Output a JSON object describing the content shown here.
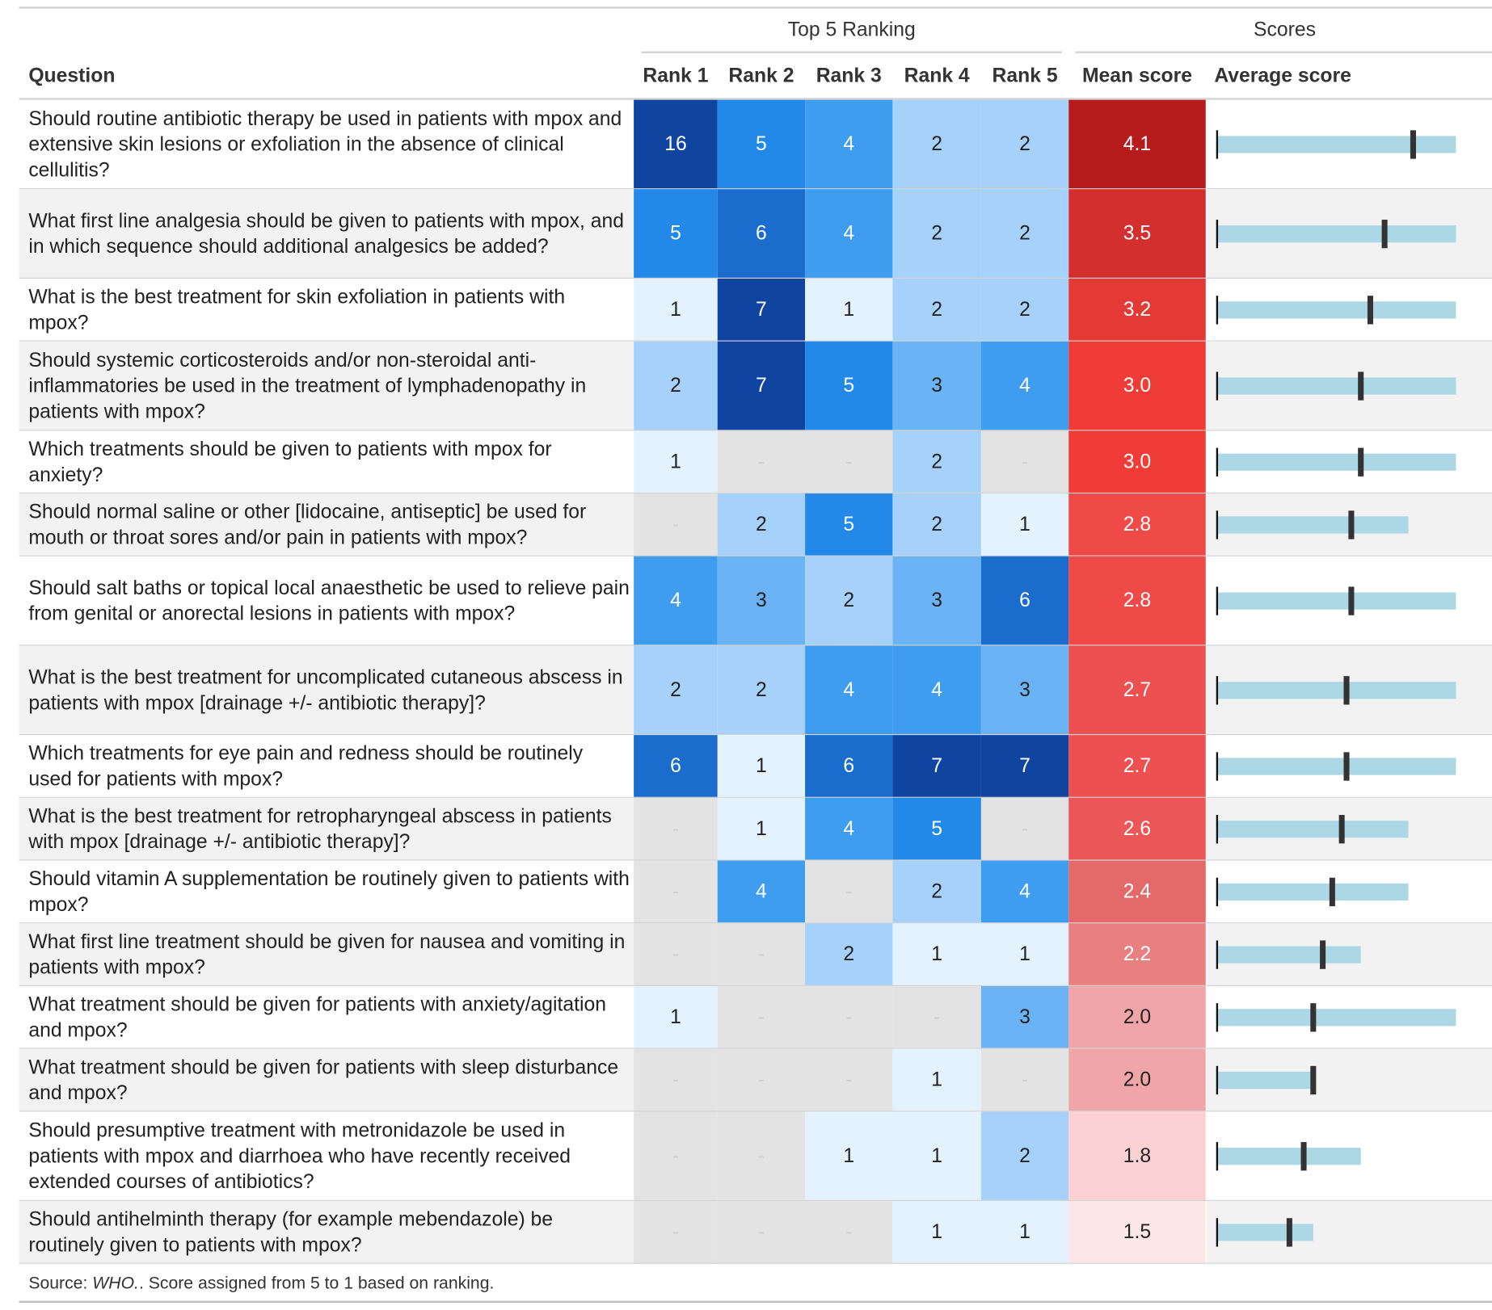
{
  "header": {
    "spanner_ranking": "Top 5 Ranking",
    "spanner_scores": "Scores",
    "col_question": "Question",
    "col_rank1": "Rank 1",
    "col_rank2": "Rank 2",
    "col_rank3": "Rank 3",
    "col_rank4": "Rank 4",
    "col_rank5": "Rank 5",
    "col_mean": "Mean score",
    "col_avg": "Average score"
  },
  "footnote": {
    "prefix": "Source: ",
    "source": "WHO.",
    "suffix": ". Score assigned from 5 to 1 based on ranking."
  },
  "empty_marker": "-",
  "colors": {
    "blue_scale": [
      "#e3f2fd",
      "#c5e1fb",
      "#a6d1fa",
      "#8cc7f9",
      "#6ab4f5",
      "#3f9df0",
      "#2389e8",
      "#1a6ccd",
      "#0f44a1"
    ],
    "empty_cell": "#e3e3e3",
    "bar_fill": "#acd8e6",
    "bar_marker": "#333333",
    "zebra": "#f2f2f2"
  },
  "chart_data": {
    "type": "table",
    "rows": [
      {
        "question": "Should routine antibiotic therapy be used in patients with mpox and extensive skin lesions or exfoliation in the absence of clinical cellulitis?",
        "ranks": [
          "16",
          "5",
          "4",
          "2",
          "2"
        ],
        "mean": "4.1",
        "bar_max": 5,
        "mean_value": 4.1,
        "mean_color": "#b71c1c"
      },
      {
        "question": "What first line analgesia should be given to patients with mpox, and in which sequence should additional analgesics be added?",
        "ranks": [
          "5",
          "6",
          "4",
          "2",
          "2"
        ],
        "mean": "3.5",
        "bar_max": 5,
        "mean_value": 3.5,
        "mean_color": "#d32f2f"
      },
      {
        "question": "What is the best treatment for skin exfoliation in patients with mpox?",
        "ranks": [
          "1",
          "7",
          "1",
          "2",
          "2"
        ],
        "mean": "3.2",
        "bar_max": 5,
        "mean_value": 3.2,
        "mean_color": "#e53935"
      },
      {
        "question": "Should systemic corticosteroids and/or non-steroidal anti-inflammatories be used in the treatment of lymphadenopathy in patients with mpox?",
        "ranks": [
          "2",
          "7",
          "5",
          "3",
          "4"
        ],
        "mean": "3.0",
        "bar_max": 5,
        "mean_value": 3.0,
        "mean_color": "#f03c36"
      },
      {
        "question": "Which treatments should be given to patients with mpox for anxiety?",
        "ranks": [
          "1",
          "-",
          "-",
          "2",
          "-"
        ],
        "mean": "3.0",
        "bar_max": 5,
        "mean_value": 3.0,
        "mean_color": "#f03c36"
      },
      {
        "question": "Should normal saline or other [lidocaine, antiseptic] be used for mouth or throat sores and/or pain in patients with mpox?",
        "ranks": [
          "-",
          "2",
          "5",
          "2",
          "1"
        ],
        "mean": "2.8",
        "bar_max": 4,
        "mean_value": 2.8,
        "mean_color": "#ef4a47"
      },
      {
        "question": "Should salt baths or topical local anaesthetic be used to relieve pain from genital or anorectal lesions in patients with mpox?",
        "ranks": [
          "4",
          "3",
          "2",
          "3",
          "6"
        ],
        "mean": "2.8",
        "bar_max": 5,
        "mean_value": 2.8,
        "mean_color": "#ef4a47"
      },
      {
        "question": "What is the best treatment for uncomplicated cutaneous abscess in patients with mpox [drainage +/- antibiotic therapy]?",
        "ranks": [
          "2",
          "2",
          "4",
          "4",
          "3"
        ],
        "mean": "2.7",
        "bar_max": 5,
        "mean_value": 2.7,
        "mean_color": "#ed5050"
      },
      {
        "question": "Which treatments for eye pain and redness should be routinely used for patients with mpox?",
        "ranks": [
          "6",
          "1",
          "6",
          "7",
          "7"
        ],
        "mean": "2.7",
        "bar_max": 5,
        "mean_value": 2.7,
        "mean_color": "#ed5050"
      },
      {
        "question": "What is the best treatment for retropharyngeal abscess in patients with mpox [drainage +/- antibiotic therapy]?",
        "ranks": [
          "-",
          "1",
          "4",
          "5",
          "-"
        ],
        "mean": "2.6",
        "bar_max": 4,
        "mean_value": 2.6,
        "mean_color": "#eb5656"
      },
      {
        "question": "Should vitamin A supplementation be routinely given to patients with mpox?",
        "ranks": [
          "-",
          "4",
          "-",
          "2",
          "4"
        ],
        "mean": "2.4",
        "bar_max": 4,
        "mean_value": 2.4,
        "mean_color": "#e46a6a"
      },
      {
        "question": "What first line treatment should be given for nausea and vomiting in patients with mpox?",
        "ranks": [
          "-",
          "-",
          "2",
          "1",
          "1"
        ],
        "mean": "2.2",
        "bar_max": 3,
        "mean_value": 2.2,
        "mean_color": "#e88080"
      },
      {
        "question": "What treatment should be given for patients with anxiety/agitation and mpox?",
        "ranks": [
          "1",
          "-",
          "-",
          "-",
          "3"
        ],
        "mean": "2.0",
        "bar_max": 5,
        "mean_value": 2.0,
        "mean_color": "#f0a5a8"
      },
      {
        "question": "What treatment should be given for patients with sleep disturbance and mpox?",
        "ranks": [
          "-",
          "-",
          "-",
          "1",
          "-"
        ],
        "mean": "2.0",
        "bar_max": 2,
        "mean_value": 2.0,
        "mean_color": "#f0a5a8"
      },
      {
        "question": "Should presumptive treatment with metronidazole be used in patients with mpox and diarrhoea who have recently received extended courses of antibiotics?",
        "ranks": [
          "-",
          "-",
          "1",
          "1",
          "2"
        ],
        "mean": "1.8",
        "bar_max": 3,
        "mean_value": 1.8,
        "mean_color": "#fcd1d4"
      },
      {
        "question": "Should antihelminth therapy (for example mebendazole) be routinely given to patients with mpox?",
        "ranks": [
          "-",
          "-",
          "-",
          "1",
          "1"
        ],
        "mean": "1.5",
        "bar_max": 2,
        "mean_value": 1.5,
        "mean_color": "#fde6e8"
      }
    ]
  }
}
